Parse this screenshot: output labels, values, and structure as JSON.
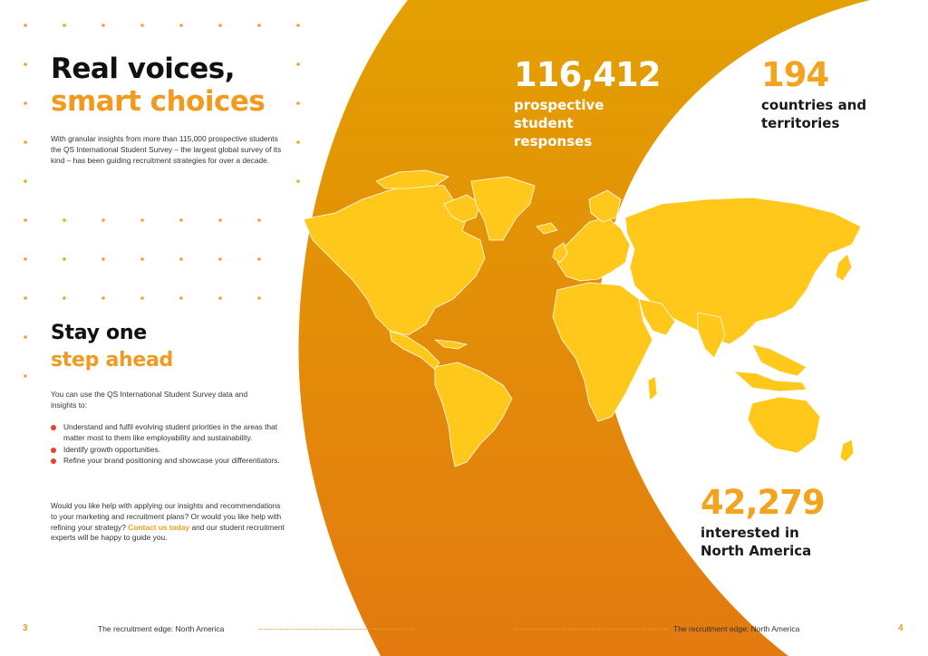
{
  "left_page": {
    "title_line1": "Real voices,",
    "title_line2": "smart choices",
    "intro": "With granular insights from more than 115,000 prospective students the QS International Student Survey – the largest global survey of its kind – has been guiding recruitment strategies for over a decade.",
    "section_title_line1": "Stay one",
    "section_title_line2": "step ahead",
    "section_intro": "You can use the QS International Student Survey data and insights to:",
    "bullets": [
      "Understand and fulfil evolving student priorities in the areas that matter most to them like employability and sustainability.",
      "Identify growth opportunities.",
      "Refine your brand positioning and showcase your differentiators."
    ],
    "help_text_before": "Would you like help with applying our insights and recommendations to your marketing and recruitment plans? Or would you like help with refining your strategy? ",
    "help_link": "Contact us today",
    "help_text_after": " and our student recruitment experts will be happy to guide you."
  },
  "stats": [
    {
      "value": "116,412",
      "label": "prospective student responses"
    },
    {
      "value": "194",
      "label": "countries and territories"
    },
    {
      "value": "42,279",
      "label": "interested in North America"
    }
  ],
  "footer": {
    "left_page_number": "3",
    "left_text": "The recruitment edge: North America",
    "right_text": "The recruitment edge: North America",
    "right_page_number": "4"
  },
  "colors": {
    "accent_orange": "#f29a1f",
    "map_yellow": "#ffc81a",
    "gradient_top": "#e3a000",
    "gradient_bottom": "#e37a10",
    "bullet_red": "#e8412c"
  }
}
